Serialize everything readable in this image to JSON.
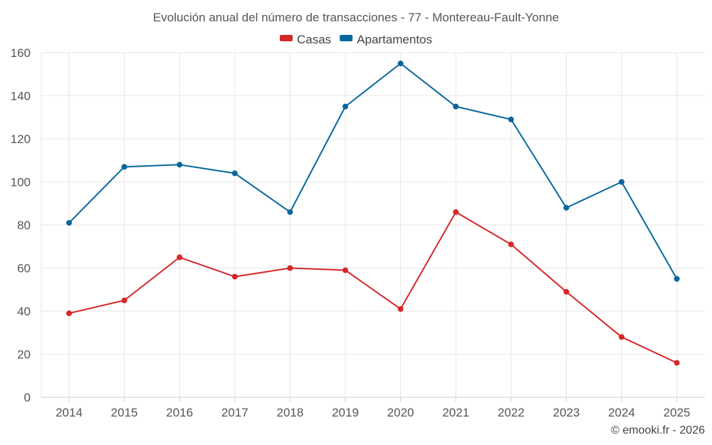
{
  "chart_data": {
    "type": "line",
    "title": "Evolución anual del número de transacciones - 77 - Montereau-Fault-Yonne",
    "categories": [
      "2014",
      "2015",
      "2016",
      "2017",
      "2018",
      "2019",
      "2020",
      "2021",
      "2022",
      "2023",
      "2024",
      "2025"
    ],
    "series": [
      {
        "name": "Casas",
        "color": "#d62728",
        "values": [
          39,
          45,
          65,
          56,
          60,
          59,
          41,
          86,
          71,
          49,
          28,
          16
        ]
      },
      {
        "name": "Apartamentos",
        "color": "#08679c",
        "values": [
          81,
          107,
          108,
          104,
          86,
          135,
          155,
          135,
          129,
          88,
          100,
          55
        ]
      }
    ],
    "ylim": [
      0,
      160
    ],
    "yticks": [
      0,
      20,
      40,
      60,
      80,
      100,
      120,
      140,
      160
    ],
    "xlabel": "",
    "ylabel": "",
    "grid": true,
    "legend_position": "top-center"
  },
  "credit": "© emooki.fr - 2026"
}
